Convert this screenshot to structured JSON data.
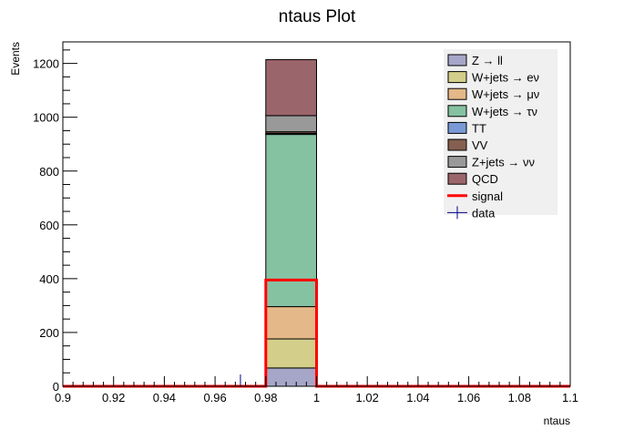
{
  "chart_data": {
    "type": "bar",
    "title": "ntaus Plot",
    "xlabel": "ntaus",
    "ylabel": "Events",
    "xlim": [
      0.9,
      1.1
    ],
    "ylim": [
      0,
      1280
    ],
    "x_ticks": [
      "0.9",
      "0.92",
      "0.94",
      "0.96",
      "0.98",
      "1",
      "1.02",
      "1.04",
      "1.06",
      "1.08",
      "1.1"
    ],
    "y_ticks": [
      "0",
      "200",
      "400",
      "600",
      "800",
      "1000",
      "1200"
    ],
    "bin": [
      0.98,
      1.0
    ],
    "series": [
      {
        "name": "Z → ll",
        "value": 68,
        "color": "#a6a6c8"
      },
      {
        "name": "W+jets → eν",
        "value": 108,
        "color": "#d3cf8a"
      },
      {
        "name": "W+jets → μν",
        "value": 120,
        "color": "#e4b888"
      },
      {
        "name": "W+jets → τν",
        "value": 640,
        "color": "#85c2a2"
      },
      {
        "name": "TT",
        "value": 4,
        "color": "#7a9ad6"
      },
      {
        "name": "VV",
        "value": 6,
        "color": "#855f50"
      },
      {
        "name": "Z+jets → νν",
        "value": 60,
        "color": "#999999"
      },
      {
        "name": "QCD",
        "value": 208,
        "color": "#9b666b"
      }
    ],
    "signal": {
      "name": "signal",
      "value": 395,
      "color": "#ff0000"
    },
    "data": {
      "name": "data",
      "x": 0.97,
      "value": 0,
      "color": "#00008b"
    },
    "legend_position": "top-right",
    "grid": false
  }
}
